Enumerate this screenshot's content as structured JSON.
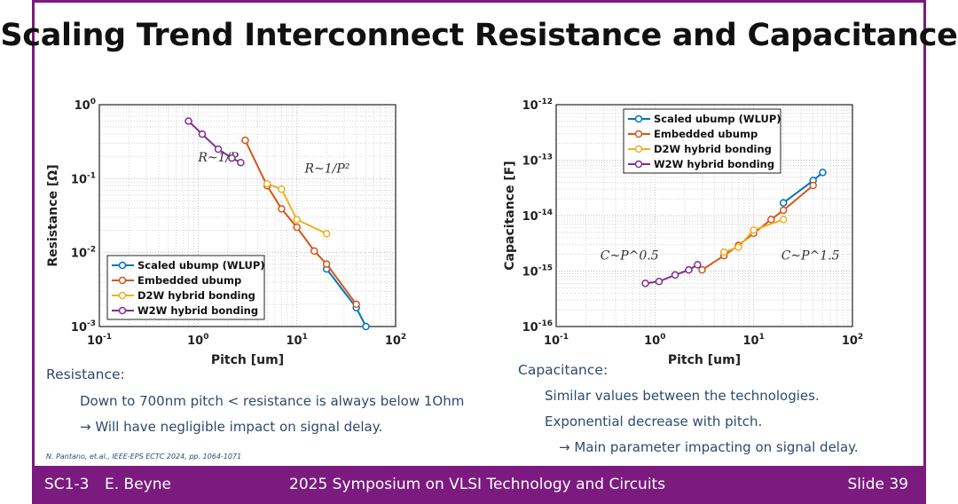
{
  "slide": {
    "title": "Scaling Trend Interconnect Resistance and Capacitance",
    "reference": "N. Pantano, et.al., IEEE-EPS ECTC 2024, pp. 1064-1071",
    "resistance_heading": "Resistance:",
    "resistance_points": [
      "Down to 700nm pitch < resistance is always below 1Ohm",
      "→ Will have negligible impact on signal delay."
    ],
    "capacitance_heading": "Capacitance:",
    "capacitance_points": [
      "Similar values between the technologies.",
      "Exponential decrease with pitch.",
      "→ Main parameter impacting on signal delay."
    ],
    "footer": {
      "session": "SC1-3",
      "author": "E. Beyne",
      "event": "2025 Symposium on VLSI Technology and Circuits",
      "slide": "Slide 39"
    },
    "colors": {
      "brand": "#7b1a7f",
      "text": "#2e4a6e"
    }
  },
  "chart_data": [
    {
      "type": "line",
      "xlabel": "Pitch [um]",
      "ylabel": "Resistance [Ω]",
      "xscale": "log",
      "yscale": "log",
      "xlim": [
        0.1,
        100
      ],
      "ylim": [
        0.001,
        1
      ],
      "xticks": [
        "10^-1",
        "10^0",
        "10^1",
        "10^2"
      ],
      "yticks": [
        "10^-3",
        "10^-2",
        "10^-1",
        "10^0"
      ],
      "grid": true,
      "legend": "bottom-left",
      "annotations": [
        {
          "text": "R~1/P",
          "x": 1.0,
          "y": 0.17
        },
        {
          "text": "R~1/P²",
          "x": 12,
          "y": 0.12
        }
      ],
      "series": [
        {
          "name": "Scaled ubump (WLUP)",
          "color": "#0072bd",
          "x": [
            20,
            40,
            50
          ],
          "y": [
            0.006,
            0.0018,
            0.001
          ]
        },
        {
          "name": "Embedded ubump",
          "color": "#d95319",
          "x": [
            3,
            5,
            7,
            10,
            15,
            20,
            40
          ],
          "y": [
            0.33,
            0.08,
            0.039,
            0.022,
            0.0105,
            0.007,
            0.002
          ]
        },
        {
          "name": "D2W hybrid bonding",
          "color": "#edb120",
          "x": [
            5,
            7,
            10,
            20
          ],
          "y": [
            0.085,
            0.072,
            0.028,
            0.018
          ]
        },
        {
          "name": "W2W hybrid bonding",
          "color": "#7e2f8e",
          "x": [
            0.8,
            1.1,
            1.6,
            2.2,
            2.7
          ],
          "y": [
            0.6,
            0.4,
            0.25,
            0.19,
            0.165
          ]
        }
      ]
    },
    {
      "type": "line",
      "xlabel": "Pitch [um]",
      "ylabel": "Capacitance [F]",
      "xscale": "log",
      "yscale": "log",
      "xlim": [
        0.1,
        100
      ],
      "ylim": [
        1e-16,
        1e-12
      ],
      "xticks": [
        "10^-1",
        "10^0",
        "10^1",
        "10^2"
      ],
      "yticks": [
        "10^-16",
        "10^-15",
        "10^-14",
        "10^-13",
        "10^-12"
      ],
      "grid": true,
      "legend": "top",
      "annotations": [
        {
          "text": "C~P^0.5",
          "x": 0.28,
          "y": 1.6e-15
        },
        {
          "text": "C~P^1.5",
          "x": 19,
          "y": 1.6e-15
        }
      ],
      "series": [
        {
          "name": "Scaled ubump (WLUP)",
          "color": "#0072bd",
          "x": [
            20,
            40,
            50
          ],
          "y": [
            1.7e-14,
            4.3e-14,
            6e-14
          ]
        },
        {
          "name": "Embedded ubump",
          "color": "#d95319",
          "x": [
            3,
            5,
            7,
            10,
            15,
            20,
            40
          ],
          "y": [
            1.05e-15,
            1.9e-15,
            2.9e-15,
            4.8e-15,
            8.5e-15,
            1.25e-14,
            3.5e-14
          ]
        },
        {
          "name": "D2W hybrid bonding",
          "color": "#edb120",
          "x": [
            5,
            7,
            10,
            20
          ],
          "y": [
            2.2e-15,
            2.7e-15,
            5.5e-15,
            8.5e-15
          ]
        },
        {
          "name": "W2W hybrid bonding",
          "color": "#7e2f8e",
          "x": [
            0.8,
            1.1,
            1.6,
            2.2,
            2.7
          ],
          "y": [
            6e-16,
            6.5e-16,
            8.5e-16,
            1.05e-15,
            1.3e-15
          ]
        }
      ]
    }
  ]
}
